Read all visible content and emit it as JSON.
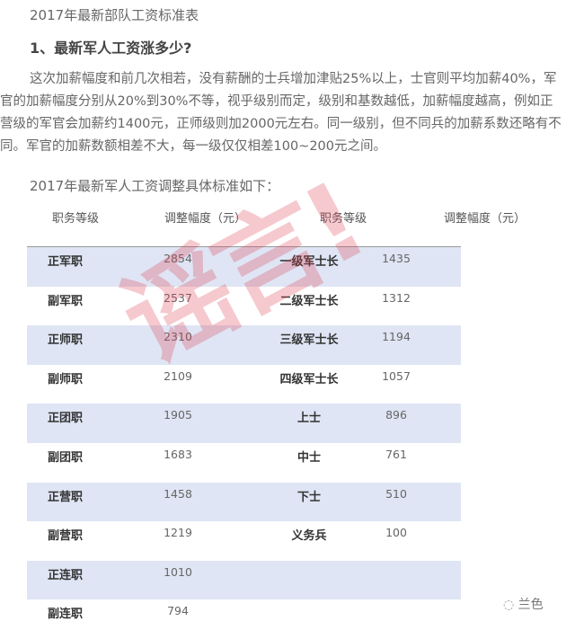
{
  "title": "2017年最新部队工资标准表",
  "heading": "1、最新军人工资涨多少?",
  "paragraph_lines": [
    "这次加薪幅度和前几次相若，没有薪酬的士兵增加津贴25%以上，士官则平均加薪40%，军",
    "官的加薪幅度分别从20%到30%不等，视乎级别而定，级别和基数越低，加薪幅度越高，例如正",
    "营级的军官会加薪约1400元，正师级则加2000元左右。同一级别，但不同兵的加薪系数还略有不",
    "同。军官的加薪数额相差不大，每一级仅仅相差100~200元之间。"
  ],
  "subtitle": "2017年最新军人工资调整具体标准如下：",
  "table": {
    "headers": [
      "职务等级",
      "调整幅度（元）",
      "职务等级",
      "调整幅度（元）"
    ],
    "rows": [
      [
        "正军职",
        "2854",
        "一级军士长",
        "1435"
      ],
      [
        "副军职",
        "2537",
        "二级军士长",
        "1312"
      ],
      [
        "正师职",
        "2310",
        "三级军士长",
        "1194"
      ],
      [
        "副师职",
        "2109",
        "四级军士长",
        "1057"
      ],
      [
        "正团职",
        "1905",
        "上士",
        "896"
      ],
      [
        "副团职",
        "1683",
        "中士",
        "761"
      ],
      [
        "正营职",
        "1458",
        "下士",
        "510"
      ],
      [
        "副营职",
        "1219",
        "义务兵",
        "100"
      ],
      [
        "正连职",
        "1010",
        "",
        ""
      ],
      [
        "副连职",
        "794",
        "",
        ""
      ]
    ],
    "stripe_color": "#dfe5f4"
  },
  "stamp": {
    "text": "谣言!",
    "color": "#dc3c50"
  },
  "watermark": {
    "icon": "wechat-icon",
    "text": "兰色"
  }
}
